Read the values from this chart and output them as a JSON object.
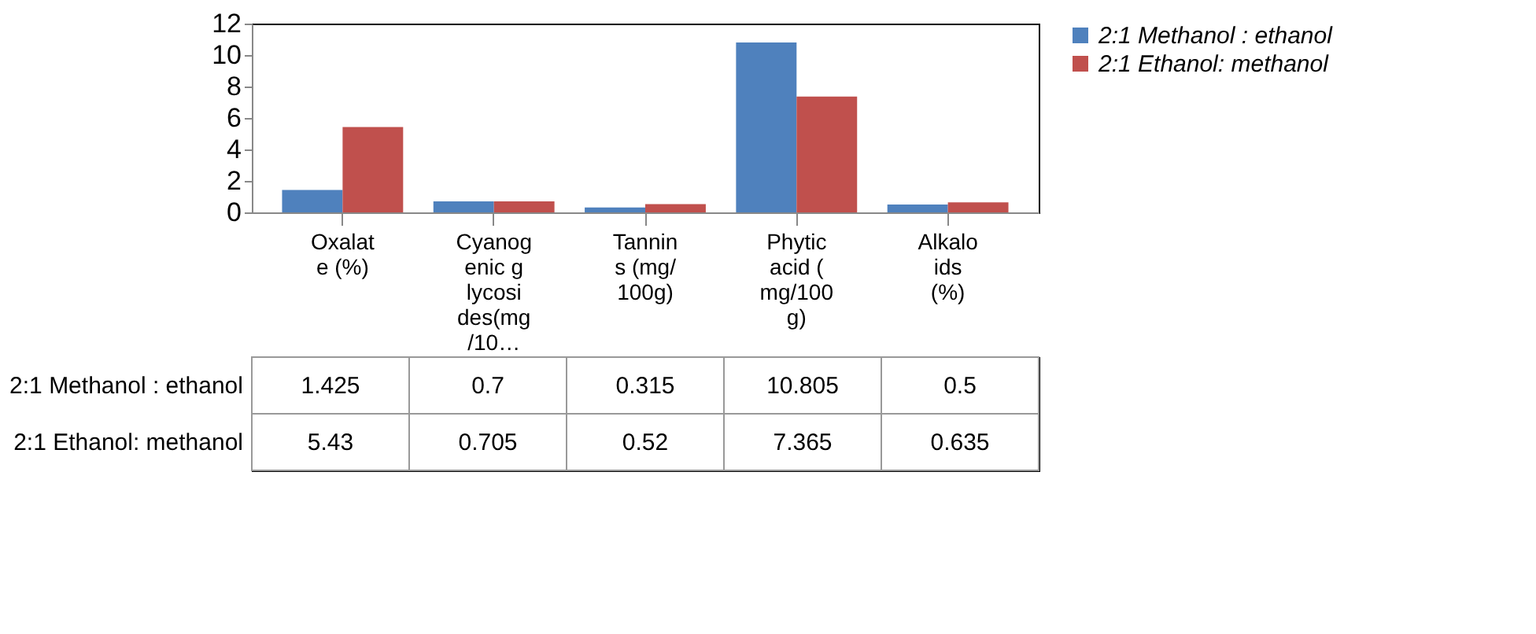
{
  "chart_data": {
    "type": "bar",
    "categories": [
      "Oxalate (%)",
      "Cyanogenic glycosides(mg/10…",
      "Tannins (mg/100g)",
      "Phytic acid (mg/100g)",
      "Alkaloids (%)"
    ],
    "series": [
      {
        "name": "2:1 Methanol : ethanol",
        "color": "#4f81bd",
        "values": [
          1.425,
          0.7,
          0.315,
          10.805,
          0.5
        ]
      },
      {
        "name": "2:1 Ethanol: methanol",
        "color": "#c0504d",
        "values": [
          5.43,
          0.705,
          0.52,
          7.365,
          0.635
        ]
      }
    ],
    "ylim": [
      0,
      12
    ],
    "yticks": [
      0,
      2,
      4,
      6,
      8,
      10,
      12
    ],
    "grid": false,
    "legend": "right",
    "data_labels": true
  }
}
